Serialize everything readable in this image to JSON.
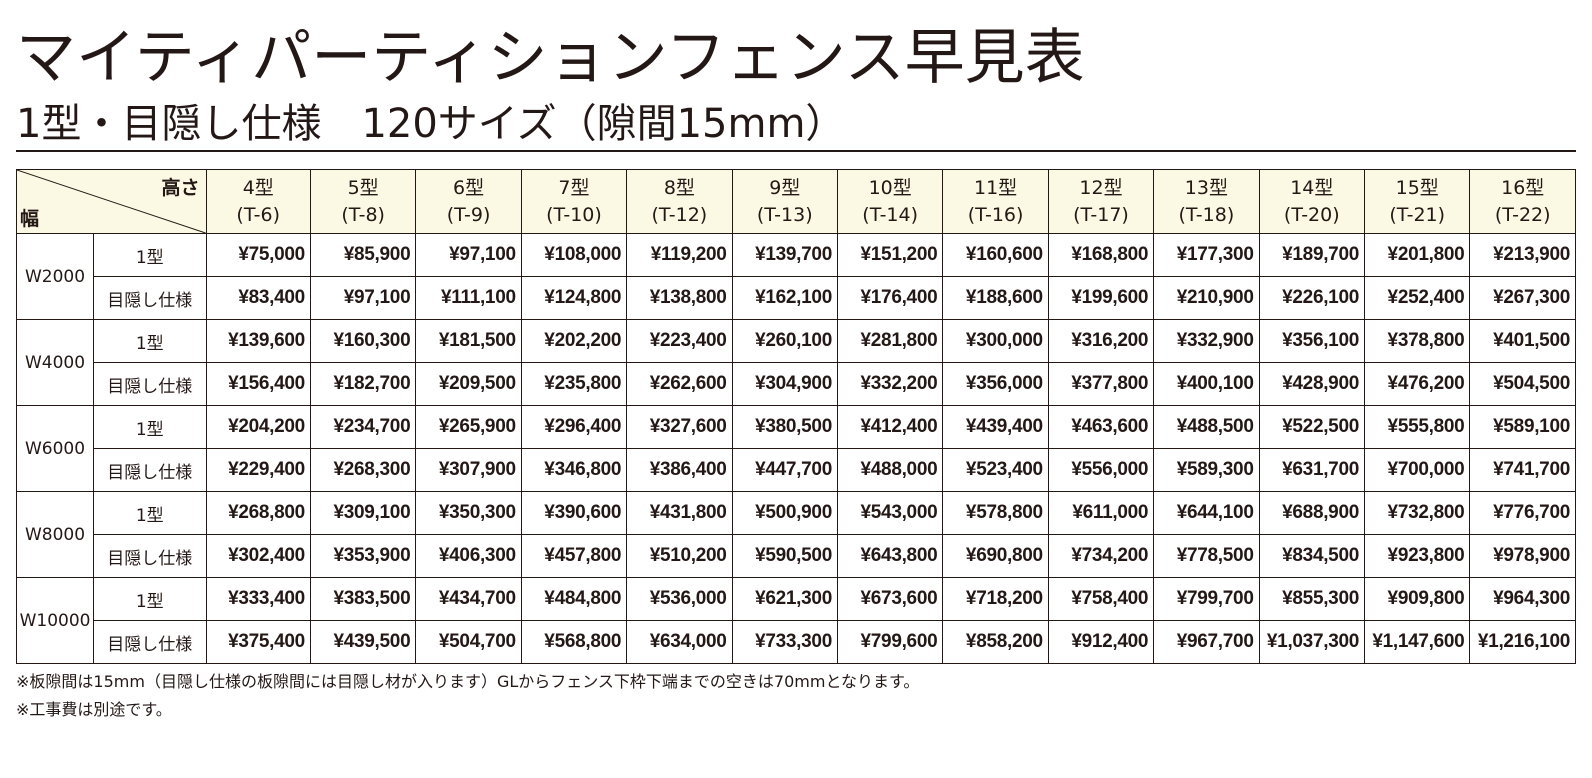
{
  "title": "マイティパーティションフェンス早見表",
  "subtitle": "1型・目隠し仕様　120サイズ（隙間15mm）",
  "table": {
    "corner_height_label": "高さ",
    "corner_width_label": "幅",
    "columns": [
      {
        "type": "4型",
        "code": "(T-6)"
      },
      {
        "type": "5型",
        "code": "(T-8)"
      },
      {
        "type": "6型",
        "code": "(T-9)"
      },
      {
        "type": "7型",
        "code": "(T-10)"
      },
      {
        "type": "8型",
        "code": "(T-12)"
      },
      {
        "type": "9型",
        "code": "(T-13)"
      },
      {
        "type": "10型",
        "code": "(T-14)"
      },
      {
        "type": "11型",
        "code": "(T-16)"
      },
      {
        "type": "12型",
        "code": "(T-17)"
      },
      {
        "type": "13型",
        "code": "(T-18)"
      },
      {
        "type": "14型",
        "code": "(T-20)"
      },
      {
        "type": "15型",
        "code": "(T-21)"
      },
      {
        "type": "16型",
        "code": "(T-22)"
      }
    ],
    "groups": [
      {
        "width": "W2000",
        "rows": [
          {
            "kind": "1型",
            "prices": [
              "¥75,000",
              "¥85,900",
              "¥97,100",
              "¥108,000",
              "¥119,200",
              "¥139,700",
              "¥151,200",
              "¥160,600",
              "¥168,800",
              "¥177,300",
              "¥189,700",
              "¥201,800",
              "¥213,900"
            ]
          },
          {
            "kind": "目隠し仕様",
            "prices": [
              "¥83,400",
              "¥97,100",
              "¥111,100",
              "¥124,800",
              "¥138,800",
              "¥162,100",
              "¥176,400",
              "¥188,600",
              "¥199,600",
              "¥210,900",
              "¥226,100",
              "¥252,400",
              "¥267,300"
            ]
          }
        ]
      },
      {
        "width": "W4000",
        "rows": [
          {
            "kind": "1型",
            "prices": [
              "¥139,600",
              "¥160,300",
              "¥181,500",
              "¥202,200",
              "¥223,400",
              "¥260,100",
              "¥281,800",
              "¥300,000",
              "¥316,200",
              "¥332,900",
              "¥356,100",
              "¥378,800",
              "¥401,500"
            ]
          },
          {
            "kind": "目隠し仕様",
            "prices": [
              "¥156,400",
              "¥182,700",
              "¥209,500",
              "¥235,800",
              "¥262,600",
              "¥304,900",
              "¥332,200",
              "¥356,000",
              "¥377,800",
              "¥400,100",
              "¥428,900",
              "¥476,200",
              "¥504,500"
            ]
          }
        ]
      },
      {
        "width": "W6000",
        "rows": [
          {
            "kind": "1型",
            "prices": [
              "¥204,200",
              "¥234,700",
              "¥265,900",
              "¥296,400",
              "¥327,600",
              "¥380,500",
              "¥412,400",
              "¥439,400",
              "¥463,600",
              "¥488,500",
              "¥522,500",
              "¥555,800",
              "¥589,100"
            ]
          },
          {
            "kind": "目隠し仕様",
            "prices": [
              "¥229,400",
              "¥268,300",
              "¥307,900",
              "¥346,800",
              "¥386,400",
              "¥447,700",
              "¥488,000",
              "¥523,400",
              "¥556,000",
              "¥589,300",
              "¥631,700",
              "¥700,000",
              "¥741,700"
            ]
          }
        ]
      },
      {
        "width": "W8000",
        "rows": [
          {
            "kind": "1型",
            "prices": [
              "¥268,800",
              "¥309,100",
              "¥350,300",
              "¥390,600",
              "¥431,800",
              "¥500,900",
              "¥543,000",
              "¥578,800",
              "¥611,000",
              "¥644,100",
              "¥688,900",
              "¥732,800",
              "¥776,700"
            ]
          },
          {
            "kind": "目隠し仕様",
            "prices": [
              "¥302,400",
              "¥353,900",
              "¥406,300",
              "¥457,800",
              "¥510,200",
              "¥590,500",
              "¥643,800",
              "¥690,800",
              "¥734,200",
              "¥778,500",
              "¥834,500",
              "¥923,800",
              "¥978,900"
            ]
          }
        ]
      },
      {
        "width": "W10000",
        "rows": [
          {
            "kind": "1型",
            "prices": [
              "¥333,400",
              "¥383,500",
              "¥434,700",
              "¥484,800",
              "¥536,000",
              "¥621,300",
              "¥673,600",
              "¥718,200",
              "¥758,400",
              "¥799,700",
              "¥855,300",
              "¥909,800",
              "¥964,300"
            ]
          },
          {
            "kind": "目隠し仕様",
            "prices": [
              "¥375,400",
              "¥439,500",
              "¥504,700",
              "¥568,800",
              "¥634,000",
              "¥733,300",
              "¥799,600",
              "¥858,200",
              "¥912,400",
              "¥967,700",
              "¥1,037,300",
              "¥1,147,600",
              "¥1,216,100"
            ]
          }
        ]
      }
    ]
  },
  "notes": [
    "※板隙間は15mm（目隠し仕様の板隙間には目隠し材が入ります）GLからフェンス下枠下端までの空きは70mmとなります。",
    "※工事費は別途です。"
  ]
}
